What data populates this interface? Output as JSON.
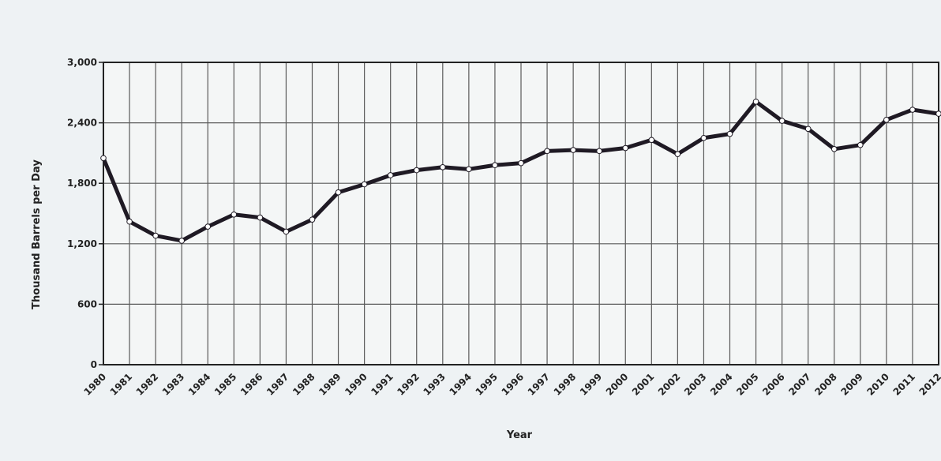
{
  "chart_data": {
    "type": "line",
    "title": "",
    "xlabel": "Year",
    "ylabel": "Thousand Barrels per Day",
    "ylim": [
      0,
      3000
    ],
    "yticks": [
      0,
      600,
      1200,
      1800,
      2400,
      3000
    ],
    "ytick_labels": [
      "0",
      "600",
      "1,200",
      "1,800",
      "2,400",
      "3,000"
    ],
    "grid": true,
    "legend": "none",
    "categories": [
      "1980",
      "1981",
      "1982",
      "1983",
      "1984",
      "1985",
      "1986",
      "1987",
      "1988",
      "1989",
      "1990",
      "1991",
      "1992",
      "1993",
      "1994",
      "1995",
      "1996",
      "1997",
      "1998",
      "1999",
      "2000",
      "2001",
      "2002",
      "2003",
      "2004",
      "2005",
      "2006",
      "2007",
      "2008",
      "2009",
      "2010",
      "2011",
      "2012"
    ],
    "series": [
      {
        "values": [
          2050,
          1420,
          1280,
          1230,
          1370,
          1490,
          1460,
          1320,
          1440,
          1710,
          1790,
          1880,
          1930,
          1960,
          1940,
          1980,
          2000,
          2120,
          2130,
          2120,
          2150,
          2230,
          2090,
          2250,
          2290,
          2610,
          2420,
          2340,
          2140,
          2180,
          2430,
          2530,
          2490
        ],
        "color": "#1f1a24"
      }
    ],
    "colors": {
      "line": "#1f1a24",
      "marker_fill": "#ffffff",
      "grid": "#5a5a5a",
      "frame": "#222222",
      "plot_bg": "#f4f6f6"
    }
  }
}
